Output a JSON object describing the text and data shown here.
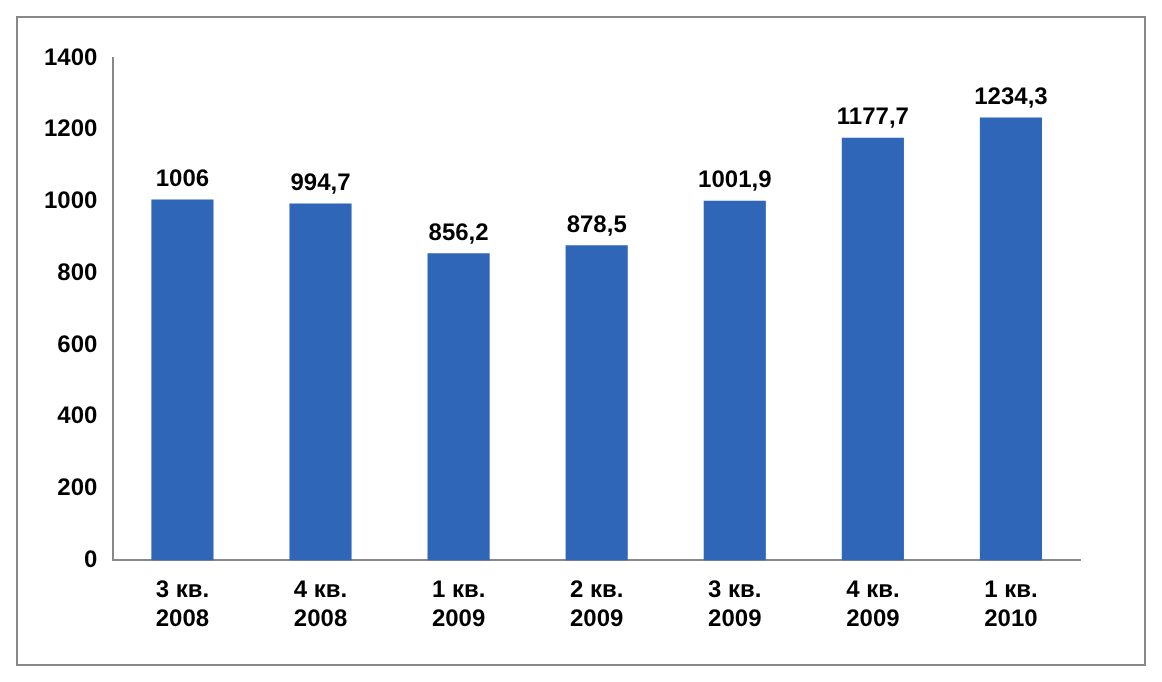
{
  "chart_data": {
    "type": "bar",
    "categories": [
      "3 кв. 2008",
      "4 кв. 2008",
      "1 кв. 2009",
      "2 кв. 2009",
      "3 кв. 2009",
      "4 кв. 2009",
      "1 кв. 2010"
    ],
    "values": [
      1006,
      994.7,
      856.2,
      878.5,
      1001.9,
      1177.7,
      1234.3
    ],
    "value_labels": [
      "1006",
      "994,7",
      "856,2",
      "878,5",
      "1001,9",
      "1177,7",
      "1234,3"
    ],
    "color": "#2f66b8",
    "ylim": [
      0,
      1400
    ],
    "yticks": [
      0,
      200,
      400,
      600,
      800,
      1000,
      1200,
      1400
    ],
    "grid": false,
    "legend": false
  }
}
